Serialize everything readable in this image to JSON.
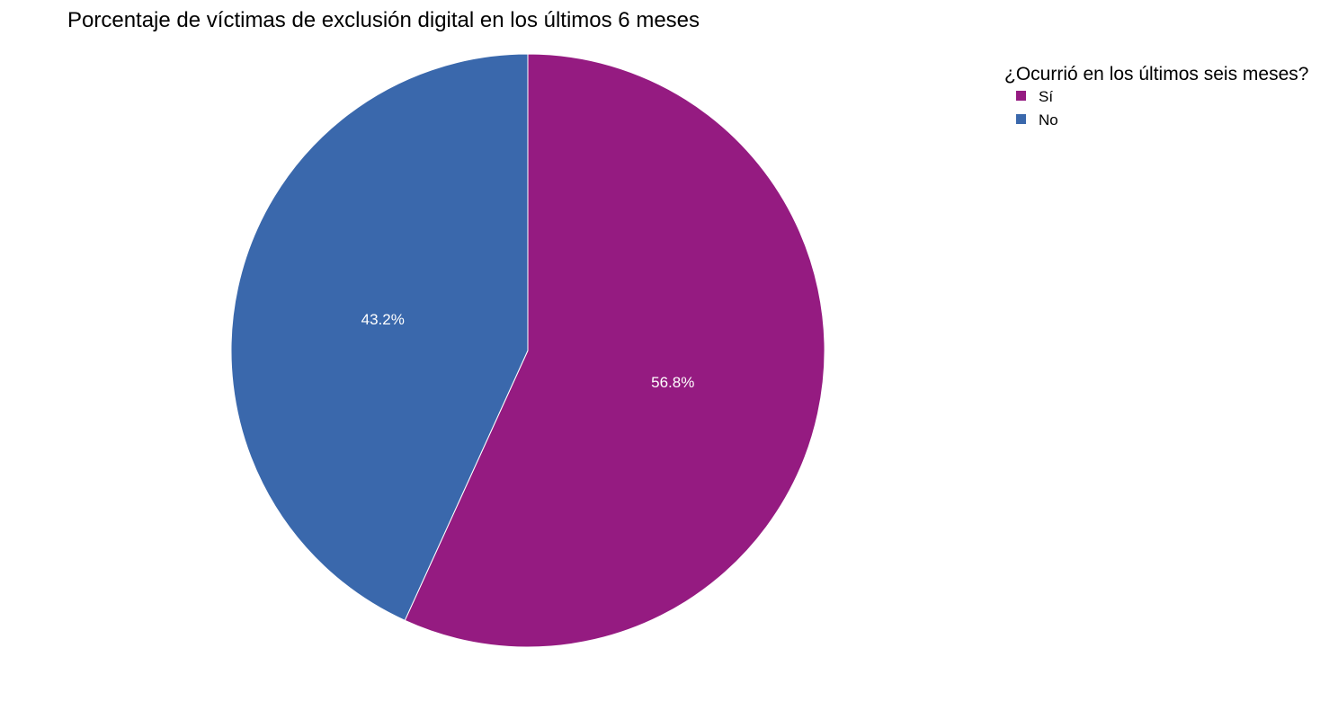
{
  "chart_data": {
    "type": "pie",
    "title": "Porcentaje de víctimas de exclusión digital en los últimos 6 meses",
    "legend": {
      "title": "¿Ocurrió en los últimos seis meses?",
      "placement": "top-right"
    },
    "slices": [
      {
        "label": "Sí",
        "value": 56.8,
        "display": "56.8%",
        "color": "#951b81"
      },
      {
        "label": "No",
        "value": 43.2,
        "display": "43.2%",
        "color": "#3a68ac"
      }
    ],
    "start": "top",
    "direction": "clockwise"
  }
}
